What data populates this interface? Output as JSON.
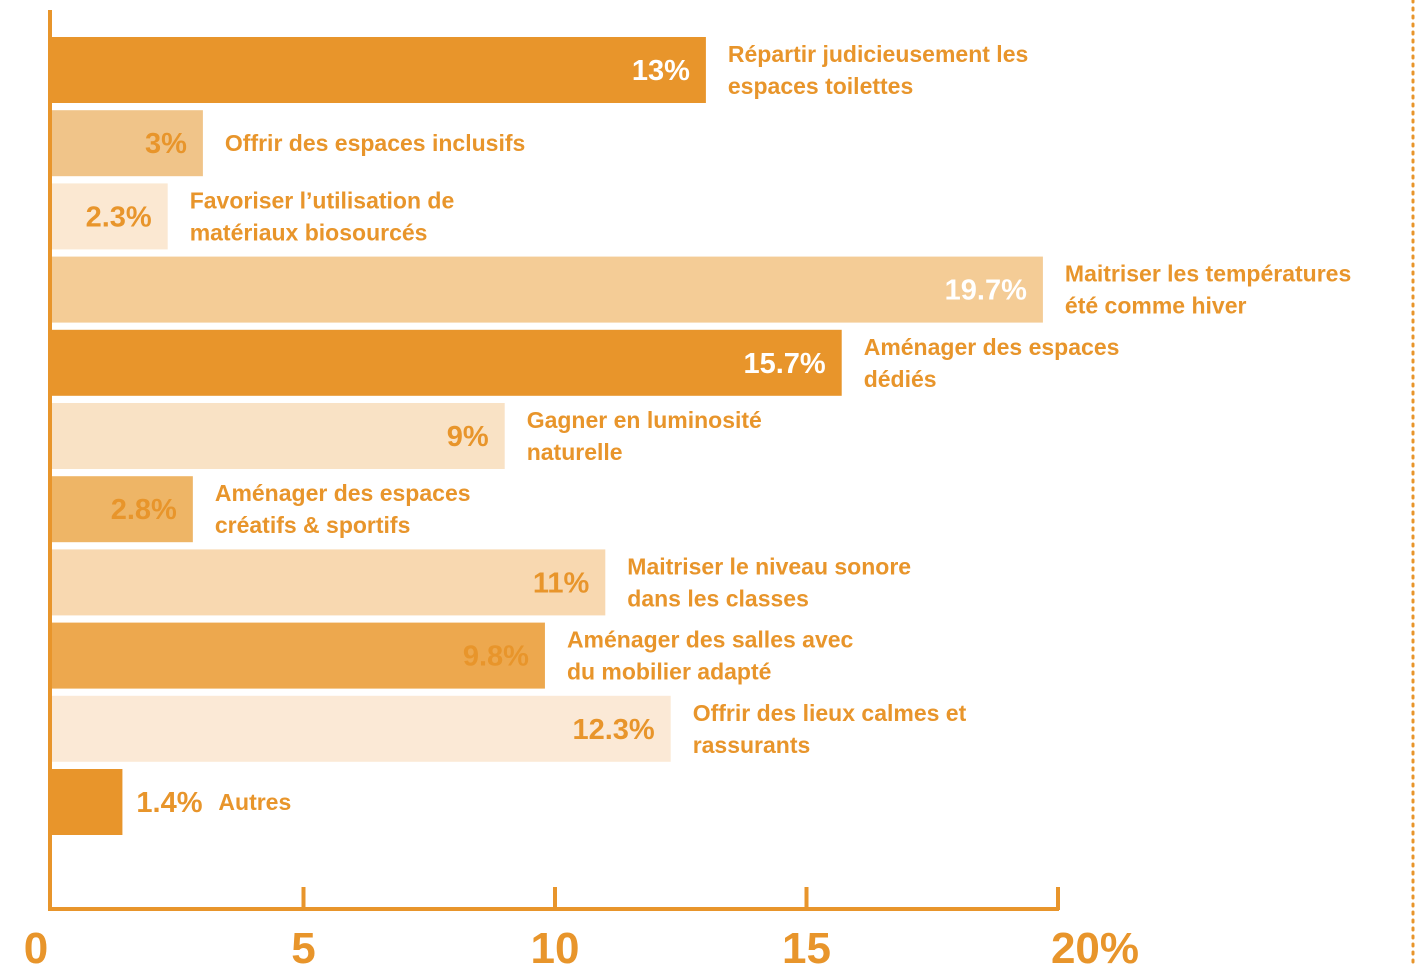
{
  "colors": {
    "accent": "#e8952b",
    "border_dots": "#e8952b"
  },
  "chart_data": {
    "type": "bar",
    "orientation": "horizontal",
    "title": "",
    "xlabel": "",
    "ylabel": "",
    "xlim": [
      0,
      20
    ],
    "x_ticks": [
      0,
      5,
      10,
      15,
      20
    ],
    "x_tick_labels": [
      "0",
      "5",
      "10",
      "15",
      "20%"
    ],
    "grid": false,
    "categories": [
      "Répartir judicieusement les espaces toilettes",
      "Offrir des espaces inclusifs",
      "Favoriser l’utilisation de matériaux biosourcés",
      "Maitriser les températures été comme hiver",
      "Aménager des espaces dédiés",
      "Gagner en luminosité naturelle",
      "Aménager des espaces créatifs & sportifs",
      "Maitriser le niveau sonore dans les classes",
      "Aménager des salles avec du mobilier adapté",
      "Offrir des lieux calmes et rassurants",
      "Autres"
    ],
    "label_lines": [
      [
        "Répartir judicieusement les",
        "espaces toilettes"
      ],
      [
        "Offrir des espaces inclusifs"
      ],
      [
        "Favoriser l’utilisation de",
        "matériaux biosourcés"
      ],
      [
        "Maitriser les températures",
        "été comme hiver"
      ],
      [
        "Aménager des espaces",
        "dédiés"
      ],
      [
        "Gagner en luminosité",
        "naturelle"
      ],
      [
        "Aménager des espaces",
        "créatifs & sportifs"
      ],
      [
        "Maitriser le niveau sonore",
        "dans les classes"
      ],
      [
        "Aménager des salles avec",
        "du mobilier adapté"
      ],
      [
        "Offrir des lieux calmes et",
        "rassurants"
      ],
      [
        "Autres"
      ]
    ],
    "values": [
      13,
      3,
      2.3,
      19.7,
      15.7,
      9,
      2.8,
      11,
      9.8,
      12.3,
      1.4
    ],
    "value_labels": [
      "13%",
      "3%",
      "2.3%",
      "19.7%",
      "15.7%",
      "9%",
      "2.8%",
      "11%",
      "9.8%",
      "12.3%",
      "1.4%"
    ],
    "bar_colors": [
      "#e8952b",
      "#f0c489",
      "#fbe8d2",
      "#f4cc96",
      "#e8952b",
      "#f9e2c5",
      "#eeb566",
      "#f8d8b0",
      "#eda84e",
      "#fbe9d6",
      "#e8952b"
    ]
  }
}
